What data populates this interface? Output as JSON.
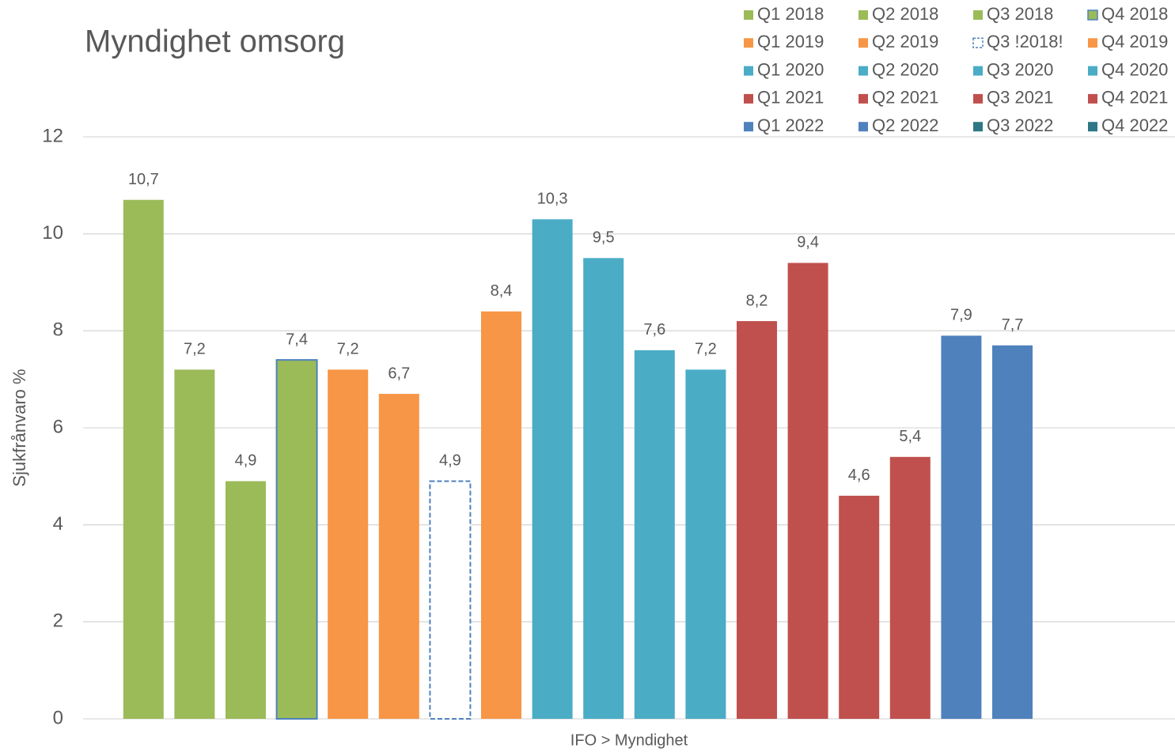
{
  "chart_data": {
    "type": "bar",
    "title": "Myndighet omsorg",
    "y_label": "Sjukfrånvaro %",
    "categories": [
      "IFO > Myndighet"
    ],
    "ylim": [
      0,
      12
    ],
    "yticks": [
      0,
      2,
      4,
      6,
      8,
      10,
      12
    ],
    "grid": true,
    "legend": "top-right",
    "series": [
      {
        "name": "Q1 2018",
        "color": "#9bbb59",
        "values": [
          10.7
        ],
        "value_labels": [
          "10,7"
        ]
      },
      {
        "name": "Q2 2018",
        "color": "#9bbb59",
        "values": [
          7.2
        ],
        "value_labels": [
          "7,2"
        ]
      },
      {
        "name": "Q3 2018",
        "color": "#9bbb59",
        "values": [
          4.9
        ],
        "value_labels": [
          "4,9"
        ]
      },
      {
        "name": "Q4 2018",
        "color": "#9bbb59",
        "edgecolor": "#4f81bd",
        "values": [
          7.4
        ],
        "value_labels": [
          "7,4"
        ]
      },
      {
        "name": "Q1 2019",
        "color": "#f79646",
        "values": [
          7.2
        ],
        "value_labels": [
          "7,2"
        ]
      },
      {
        "name": "Q2 2019",
        "color": "#f79646",
        "values": [
          6.7
        ],
        "value_labels": [
          "6,7"
        ]
      },
      {
        "name": "Q3 !2018!",
        "color": "#ffffff",
        "edgecolor": "#4f81bd",
        "linestyle": "dashed",
        "values": [
          4.9
        ],
        "value_labels": [
          "4,9"
        ]
      },
      {
        "name": "Q4 2019",
        "color": "#f79646",
        "values": [
          8.4
        ],
        "value_labels": [
          "8,4"
        ]
      },
      {
        "name": "Q1 2020",
        "color": "#4bacc6",
        "values": [
          10.3
        ],
        "value_labels": [
          "10,3"
        ]
      },
      {
        "name": "Q2 2020",
        "color": "#4bacc6",
        "values": [
          9.5
        ],
        "value_labels": [
          "9,5"
        ]
      },
      {
        "name": "Q3 2020",
        "color": "#4bacc6",
        "values": [
          7.6
        ],
        "value_labels": [
          "7,6"
        ]
      },
      {
        "name": "Q4 2020",
        "color": "#4bacc6",
        "values": [
          7.2
        ],
        "value_labels": [
          "7,2"
        ]
      },
      {
        "name": "Q1 2021",
        "color": "#c0504d",
        "values": [
          8.2
        ],
        "value_labels": [
          "8,2"
        ]
      },
      {
        "name": "Q2 2021",
        "color": "#c0504d",
        "values": [
          9.4
        ],
        "value_labels": [
          "9,4"
        ]
      },
      {
        "name": "Q3 2021",
        "color": "#c0504d",
        "values": [
          4.6
        ],
        "value_labels": [
          "4,6"
        ]
      },
      {
        "name": "Q4 2021",
        "color": "#c0504d",
        "values": [
          5.4
        ],
        "value_labels": [
          "5,4"
        ]
      },
      {
        "name": "Q1 2022",
        "color": "#4f81bd",
        "values": [
          7.9
        ],
        "value_labels": [
          "7,9"
        ]
      },
      {
        "name": "Q2 2022",
        "color": "#4f81bd",
        "values": [
          7.7
        ],
        "value_labels": [
          "7,7"
        ]
      },
      {
        "name": "Q3 2022",
        "color": "#2f7686",
        "values": [
          null
        ],
        "value_labels": [
          null
        ]
      },
      {
        "name": "Q4 2022",
        "color": "#2f7686",
        "values": [
          null
        ],
        "value_labels": [
          null
        ]
      }
    ]
  }
}
